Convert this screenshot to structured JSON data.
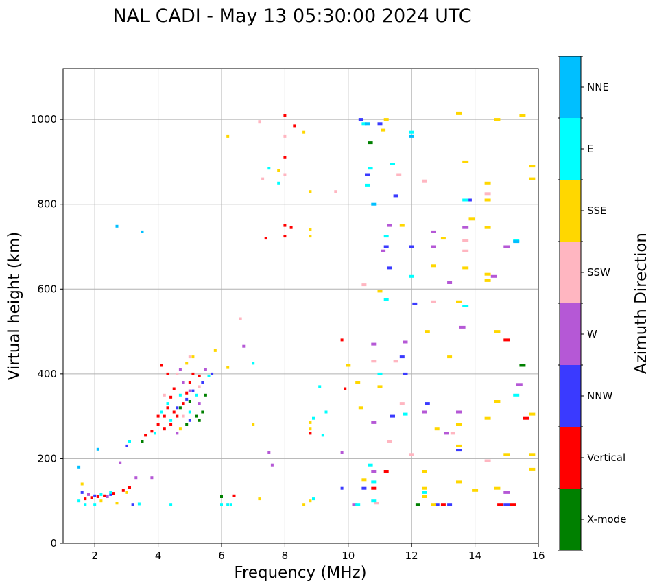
{
  "chart_data": {
    "type": "scatter",
    "title": "NAL CADI - May 13 05:30:00 2024 UTC",
    "xlabel": "Frequency (MHz)",
    "ylabel": "Virtual height (km)",
    "xlim": [
      1,
      16
    ],
    "ylim": [
      0,
      1120
    ],
    "xticks": [
      2,
      4,
      6,
      8,
      10,
      12,
      14,
      16
    ],
    "yticks": [
      0,
      200,
      400,
      600,
      800,
      1000
    ],
    "grid": true,
    "colorbar": {
      "label": "Azimuth Direction",
      "categories": [
        {
          "name": "X-mode",
          "color": "#008000"
        },
        {
          "name": "Vertical",
          "color": "#ff0000"
        },
        {
          "name": "NNW",
          "color": "#3a3aff"
        },
        {
          "name": "W",
          "color": "#b558d6"
        },
        {
          "name": "SSW",
          "color": "#ffb6c1"
        },
        {
          "name": "SSE",
          "color": "#ffd700"
        },
        {
          "name": "E",
          "color": "#00ffff"
        },
        {
          "name": "NNE",
          "color": "#00bfff"
        }
      ]
    },
    "series": [
      {
        "name": "X-mode",
        "points": [
          [
            5.2,
            300
          ],
          [
            5.4,
            310
          ],
          [
            4.9,
            280
          ],
          [
            5.0,
            335
          ],
          [
            5.3,
            290
          ],
          [
            3.5,
            240
          ],
          [
            4.7,
            320
          ],
          [
            12.2,
            92
          ],
          [
            10.7,
            945
          ],
          [
            15.5,
            420
          ],
          [
            6.0,
            110
          ],
          [
            5.5,
            350
          ]
        ]
      },
      {
        "name": "Vertical",
        "points": [
          [
            1.7,
            105
          ],
          [
            1.9,
            108
          ],
          [
            2.1,
            110
          ],
          [
            2.3,
            112
          ],
          [
            2.6,
            118
          ],
          [
            2.9,
            125
          ],
          [
            3.1,
            132
          ],
          [
            3.6,
            255
          ],
          [
            3.8,
            265
          ],
          [
            4.0,
            280
          ],
          [
            4.2,
            300
          ],
          [
            4.3,
            320
          ],
          [
            4.4,
            345
          ],
          [
            4.5,
            365
          ],
          [
            4.6,
            300
          ],
          [
            4.8,
            330
          ],
          [
            4.9,
            355
          ],
          [
            5.0,
            380
          ],
          [
            5.1,
            400
          ],
          [
            4.3,
            400
          ],
          [
            4.1,
            420
          ],
          [
            5.3,
            395
          ],
          [
            4.2,
            270
          ],
          [
            4.5,
            310
          ],
          [
            4.0,
            300
          ],
          [
            4.4,
            280
          ],
          [
            8.0,
            1010
          ],
          [
            8.0,
            910
          ],
          [
            8.0,
            750
          ],
          [
            8.0,
            725
          ],
          [
            8.2,
            745
          ],
          [
            8.3,
            985
          ],
          [
            7.4,
            720
          ],
          [
            9.8,
            480
          ],
          [
            9.9,
            365
          ],
          [
            10.8,
            130
          ],
          [
            11.2,
            170
          ],
          [
            13.0,
            92
          ],
          [
            15.0,
            480
          ],
          [
            15.2,
            92
          ],
          [
            14.8,
            92
          ],
          [
            15.6,
            295
          ],
          [
            8.8,
            260
          ],
          [
            6.4,
            112
          ]
        ]
      },
      {
        "name": "NNW",
        "points": [
          [
            1.6,
            120
          ],
          [
            2.0,
            112
          ],
          [
            2.5,
            115
          ],
          [
            3.0,
            230
          ],
          [
            3.2,
            92
          ],
          [
            4.6,
            320
          ],
          [
            4.9,
            340
          ],
          [
            5.1,
            360
          ],
          [
            5.4,
            380
          ],
          [
            5.7,
            400
          ],
          [
            5.0,
            290
          ],
          [
            10.4,
            1000
          ],
          [
            10.6,
            870
          ],
          [
            11.0,
            990
          ],
          [
            11.2,
            700
          ],
          [
            11.3,
            650
          ],
          [
            11.5,
            820
          ],
          [
            12.0,
            700
          ],
          [
            12.1,
            565
          ],
          [
            11.7,
            440
          ],
          [
            11.4,
            300
          ],
          [
            12.5,
            330
          ],
          [
            13.5,
            220
          ],
          [
            13.8,
            810
          ],
          [
            15.0,
            92
          ],
          [
            10.5,
            130
          ],
          [
            9.8,
            130
          ],
          [
            12.8,
            92
          ],
          [
            13.2,
            92
          ],
          [
            11.8,
            400
          ]
        ]
      },
      {
        "name": "W",
        "points": [
          [
            1.8,
            115
          ],
          [
            2.4,
            110
          ],
          [
            2.8,
            190
          ],
          [
            3.3,
            155
          ],
          [
            3.8,
            155
          ],
          [
            4.7,
            410
          ],
          [
            4.8,
            380
          ],
          [
            5.0,
            360
          ],
          [
            5.3,
            330
          ],
          [
            5.5,
            410
          ],
          [
            4.6,
            260
          ],
          [
            6.7,
            465
          ],
          [
            7.5,
            215
          ],
          [
            7.6,
            185
          ],
          [
            9.8,
            215
          ],
          [
            10.8,
            170
          ],
          [
            10.8,
            285
          ],
          [
            10.8,
            470
          ],
          [
            11.1,
            690
          ],
          [
            11.3,
            750
          ],
          [
            11.8,
            475
          ],
          [
            12.7,
            700
          ],
          [
            12.7,
            735
          ],
          [
            13.2,
            615
          ],
          [
            13.5,
            310
          ],
          [
            13.7,
            745
          ],
          [
            14.6,
            630
          ],
          [
            15.0,
            700
          ],
          [
            15.4,
            375
          ],
          [
            15.0,
            120
          ],
          [
            10.2,
            92
          ],
          [
            12.4,
            310
          ],
          [
            13.1,
            260
          ],
          [
            13.6,
            510
          ]
        ]
      },
      {
        "name": "SSW",
        "points": [
          [
            4.2,
            350
          ],
          [
            4.6,
            400
          ],
          [
            4.8,
            300
          ],
          [
            5.3,
            370
          ],
          [
            6.6,
            530
          ],
          [
            7.2,
            995
          ],
          [
            8.0,
            960
          ],
          [
            8.0,
            870
          ],
          [
            7.3,
            860
          ],
          [
            10.8,
            430
          ],
          [
            11.5,
            430
          ],
          [
            11.6,
            870
          ],
          [
            11.7,
            330
          ],
          [
            12.4,
            855
          ],
          [
            12.7,
            570
          ],
          [
            13.3,
            260
          ],
          [
            13.7,
            690
          ],
          [
            13.7,
            715
          ],
          [
            14.4,
            825
          ],
          [
            14.4,
            195
          ],
          [
            12.0,
            210
          ],
          [
            11.3,
            240
          ],
          [
            10.9,
            95
          ],
          [
            10.5,
            610
          ],
          [
            9.6,
            830
          ],
          [
            6.2,
            92
          ],
          [
            5.0,
            440
          ]
        ]
      },
      {
        "name": "SSE",
        "points": [
          [
            1.6,
            140
          ],
          [
            2.2,
            100
          ],
          [
            2.7,
            95
          ],
          [
            3.0,
            120
          ],
          [
            4.9,
            425
          ],
          [
            5.1,
            440
          ],
          [
            4.7,
            270
          ],
          [
            5.8,
            455
          ],
          [
            6.2,
            415
          ],
          [
            6.2,
            960
          ],
          [
            7.0,
            280
          ],
          [
            7.2,
            105
          ],
          [
            7.8,
            880
          ],
          [
            8.6,
            970
          ],
          [
            8.8,
            830
          ],
          [
            8.8,
            740
          ],
          [
            8.8,
            725
          ],
          [
            8.8,
            285
          ],
          [
            8.8,
            270
          ],
          [
            8.8,
            100
          ],
          [
            8.6,
            92
          ],
          [
            10.3,
            380
          ],
          [
            10.4,
            320
          ],
          [
            10.5,
            150
          ],
          [
            11.0,
            595
          ],
          [
            11.0,
            370
          ],
          [
            11.2,
            1000
          ],
          [
            11.1,
            975
          ],
          [
            11.7,
            750
          ],
          [
            12.4,
            130
          ],
          [
            12.4,
            110
          ],
          [
            12.4,
            170
          ],
          [
            12.5,
            500
          ],
          [
            12.7,
            655
          ],
          [
            12.8,
            270
          ],
          [
            13.0,
            720
          ],
          [
            13.2,
            440
          ],
          [
            13.5,
            280
          ],
          [
            13.5,
            230
          ],
          [
            13.5,
            145
          ],
          [
            13.5,
            1015
          ],
          [
            13.7,
            900
          ],
          [
            13.7,
            650
          ],
          [
            13.9,
            765
          ],
          [
            14.0,
            125
          ],
          [
            14.4,
            850
          ],
          [
            14.4,
            810
          ],
          [
            14.4,
            745
          ],
          [
            14.4,
            635
          ],
          [
            14.4,
            620
          ],
          [
            14.4,
            295
          ],
          [
            14.7,
            1000
          ],
          [
            14.7,
            500
          ],
          [
            14.7,
            335
          ],
          [
            14.7,
            130
          ],
          [
            15.0,
            210
          ],
          [
            15.5,
            1010
          ],
          [
            15.8,
            890
          ],
          [
            15.8,
            860
          ],
          [
            15.8,
            305
          ],
          [
            15.8,
            210
          ],
          [
            15.8,
            175
          ],
          [
            10.0,
            420
          ],
          [
            12.7,
            92
          ],
          [
            13.5,
            570
          ]
        ]
      },
      {
        "name": "E",
        "points": [
          [
            1.5,
            100
          ],
          [
            1.7,
            92
          ],
          [
            2.0,
            92
          ],
          [
            2.2,
            115
          ],
          [
            2.5,
            120
          ],
          [
            3.1,
            240
          ],
          [
            3.4,
            93
          ],
          [
            3.9,
            260
          ],
          [
            4.1,
            310
          ],
          [
            4.3,
            330
          ],
          [
            4.4,
            290
          ],
          [
            4.7,
            350
          ],
          [
            5.0,
            310
          ],
          [
            5.2,
            350
          ],
          [
            5.6,
            395
          ],
          [
            6.0,
            92
          ],
          [
            6.3,
            92
          ],
          [
            4.4,
            92
          ],
          [
            7.0,
            425
          ],
          [
            7.5,
            885
          ],
          [
            7.8,
            850
          ],
          [
            8.9,
            295
          ],
          [
            9.1,
            370
          ],
          [
            9.2,
            255
          ],
          [
            9.3,
            310
          ],
          [
            10.3,
            92
          ],
          [
            10.5,
            990
          ],
          [
            10.6,
            845
          ],
          [
            10.7,
            885
          ],
          [
            10.7,
            185
          ],
          [
            10.8,
            100
          ],
          [
            10.8,
            145
          ],
          [
            11.0,
            400
          ],
          [
            11.2,
            725
          ],
          [
            11.2,
            575
          ],
          [
            11.4,
            895
          ],
          [
            12.0,
            630
          ],
          [
            12.0,
            970
          ],
          [
            11.8,
            305
          ],
          [
            12.4,
            120
          ],
          [
            13.7,
            810
          ],
          [
            13.7,
            560
          ],
          [
            15.3,
            715
          ],
          [
            15.3,
            350
          ],
          [
            8.9,
            105
          ],
          [
            6.2,
            92
          ]
        ]
      },
      {
        "name": "NNE",
        "points": [
          [
            1.5,
            180
          ],
          [
            2.1,
            222
          ],
          [
            2.7,
            748
          ],
          [
            3.5,
            735
          ],
          [
            10.6,
            990
          ],
          [
            10.8,
            800
          ],
          [
            15.3,
            712
          ],
          [
            12.0,
            960
          ]
        ]
      }
    ]
  }
}
